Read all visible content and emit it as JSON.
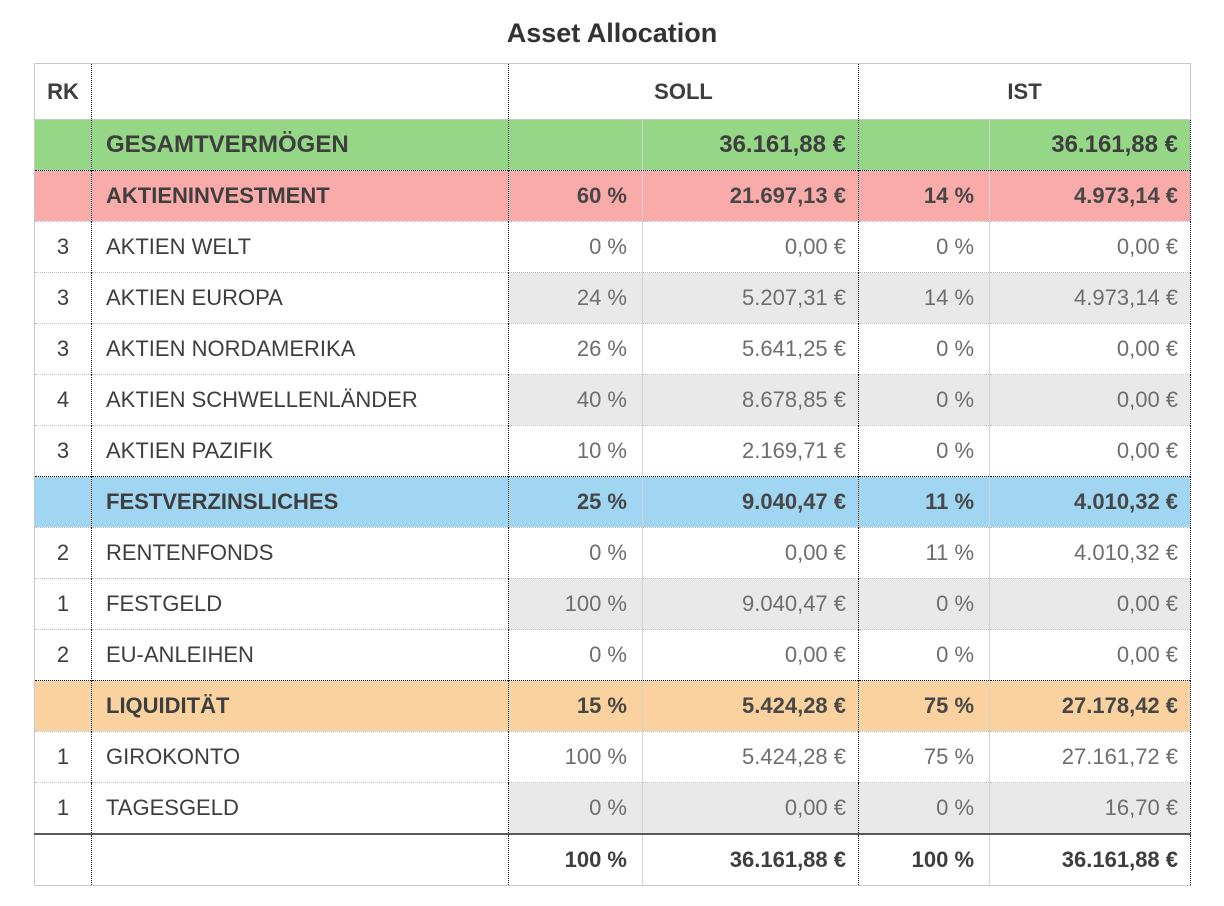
{
  "title": "Asset Allocation",
  "table": {
    "header": {
      "rk": "RK",
      "name": "",
      "soll": "SOLL",
      "ist": "IST"
    },
    "colors": {
      "total_bg": "#95d786",
      "aktien_bg": "#f9abaa",
      "fest_bg": "#a0d6f2",
      "liquid_bg": "#fad2a0",
      "shaded_bg": "#e9e9e9"
    },
    "rows": [
      {
        "type": "total",
        "section": "",
        "shaded": false,
        "rk": "",
        "name": "GESAMTVERMÖGEN",
        "soll_pct": "",
        "soll_amt": "36.161,88 €",
        "ist_pct": "",
        "ist_amt": "36.161,88 €"
      },
      {
        "type": "section",
        "section": "aktien",
        "shaded": false,
        "rk": "",
        "name": "AKTIENINVESTMENT",
        "soll_pct": "60 %",
        "soll_amt": "21.697,13 €",
        "ist_pct": "14 %",
        "ist_amt": "4.973,14 €"
      },
      {
        "type": "data",
        "section": "",
        "shaded": false,
        "rk": "3",
        "name": "AKTIEN WELT",
        "soll_pct": "0 %",
        "soll_amt": "0,00 €",
        "ist_pct": "0 %",
        "ist_amt": "0,00 €"
      },
      {
        "type": "data",
        "section": "",
        "shaded": true,
        "rk": "3",
        "name": "AKTIEN EUROPA",
        "soll_pct": "24 %",
        "soll_amt": "5.207,31 €",
        "ist_pct": "14 %",
        "ist_amt": "4.973,14 €"
      },
      {
        "type": "data",
        "section": "",
        "shaded": false,
        "rk": "3",
        "name": "AKTIEN NORDAMERIKA",
        "soll_pct": "26 %",
        "soll_amt": "5.641,25 €",
        "ist_pct": "0 %",
        "ist_amt": "0,00 €"
      },
      {
        "type": "data",
        "section": "",
        "shaded": true,
        "rk": "4",
        "name": "AKTIEN SCHWELLENLÄNDER",
        "soll_pct": "40 %",
        "soll_amt": "8.678,85 €",
        "ist_pct": "0 %",
        "ist_amt": "0,00 €"
      },
      {
        "type": "data",
        "section": "",
        "shaded": false,
        "rk": "3",
        "name": "AKTIEN PAZIFIK",
        "soll_pct": "10 %",
        "soll_amt": "2.169,71 €",
        "ist_pct": "0 %",
        "ist_amt": "0,00 €"
      },
      {
        "type": "section",
        "section": "fest",
        "shaded": false,
        "rk": "",
        "name": "FESTVERZINSLICHES",
        "soll_pct": "25 %",
        "soll_amt": "9.040,47 €",
        "ist_pct": "11 %",
        "ist_amt": "4.010,32 €"
      },
      {
        "type": "data",
        "section": "",
        "shaded": false,
        "rk": "2",
        "name": "RENTENFONDS",
        "soll_pct": "0 %",
        "soll_amt": "0,00 €",
        "ist_pct": "11 %",
        "ist_amt": "4.010,32 €"
      },
      {
        "type": "data",
        "section": "",
        "shaded": true,
        "rk": "1",
        "name": "FESTGELD",
        "soll_pct": "100 %",
        "soll_amt": "9.040,47 €",
        "ist_pct": "0 %",
        "ist_amt": "0,00 €"
      },
      {
        "type": "data",
        "section": "",
        "shaded": false,
        "rk": "2",
        "name": "EU-ANLEIHEN",
        "soll_pct": "0 %",
        "soll_amt": "0,00 €",
        "ist_pct": "0 %",
        "ist_amt": "0,00 €"
      },
      {
        "type": "section",
        "section": "liquid",
        "shaded": false,
        "rk": "",
        "name": "LIQUIDITÄT",
        "soll_pct": "15 %",
        "soll_amt": "5.424,28 €",
        "ist_pct": "75 %",
        "ist_amt": "27.178,42 €"
      },
      {
        "type": "data",
        "section": "",
        "shaded": false,
        "rk": "1",
        "name": "GIROKONTO",
        "soll_pct": "100 %",
        "soll_amt": "5.424,28 €",
        "ist_pct": "75 %",
        "ist_amt": "27.161,72 €"
      },
      {
        "type": "data",
        "section": "",
        "shaded": true,
        "rk": "1",
        "name": "TAGESGELD",
        "soll_pct": "0 %",
        "soll_amt": "0,00 €",
        "ist_pct": "0 %",
        "ist_amt": "16,70 €"
      },
      {
        "type": "footer",
        "section": "",
        "shaded": false,
        "rk": "",
        "name": "",
        "soll_pct": "100 %",
        "soll_amt": "36.161,88 €",
        "ist_pct": "100 %",
        "ist_amt": "36.161,88 €"
      }
    ]
  }
}
